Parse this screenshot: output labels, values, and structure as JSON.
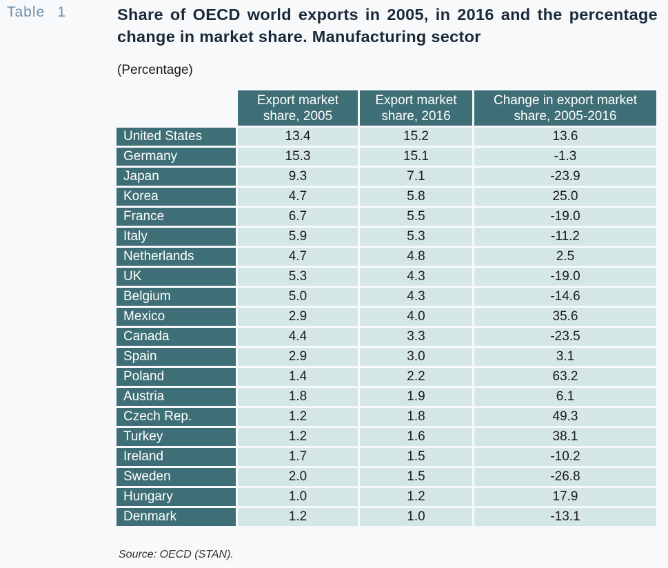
{
  "table_label": "Table",
  "table_number": "1",
  "title": "Share of OECD world exports in 2005, in 2016 and the percentage change in market share. Manufacturing sector",
  "subtitle": "(Percentage)",
  "columns": [
    [
      "Export market",
      "share, 2005"
    ],
    [
      "Export market",
      "share, 2016"
    ],
    [
      "Change in export market",
      "share, 2005-2016"
    ]
  ],
  "rows": [
    {
      "country": "United States",
      "v2005": "13.4",
      "v2016": "15.2",
      "change": "13.6"
    },
    {
      "country": "Germany",
      "v2005": "15.3",
      "v2016": "15.1",
      "change": "-1.3"
    },
    {
      "country": "Japan",
      "v2005": "9.3",
      "v2016": "7.1",
      "change": "-23.9"
    },
    {
      "country": "Korea",
      "v2005": "4.7",
      "v2016": "5.8",
      "change": "25.0"
    },
    {
      "country": "France",
      "v2005": "6.7",
      "v2016": "5.5",
      "change": "-19.0"
    },
    {
      "country": "Italy",
      "v2005": "5.9",
      "v2016": "5.3",
      "change": "-11.2"
    },
    {
      "country": "Netherlands",
      "v2005": "4.7",
      "v2016": "4.8",
      "change": "2.5"
    },
    {
      "country": "UK",
      "v2005": "5.3",
      "v2016": "4.3",
      "change": "-19.0"
    },
    {
      "country": "Belgium",
      "v2005": "5.0",
      "v2016": "4.3",
      "change": "-14.6"
    },
    {
      "country": "Mexico",
      "v2005": "2.9",
      "v2016": "4.0",
      "change": "35.6"
    },
    {
      "country": "Canada",
      "v2005": "4.4",
      "v2016": "3.3",
      "change": "-23.5"
    },
    {
      "country": "Spain",
      "v2005": "2.9",
      "v2016": "3.0",
      "change": "3.1"
    },
    {
      "country": "Poland",
      "v2005": "1.4",
      "v2016": "2.2",
      "change": "63.2"
    },
    {
      "country": "Austria",
      "v2005": "1.8",
      "v2016": "1.9",
      "change": "6.1"
    },
    {
      "country": "Czech Rep.",
      "v2005": "1.2",
      "v2016": "1.8",
      "change": "49.3"
    },
    {
      "country": "Turkey",
      "v2005": "1.2",
      "v2016": "1.6",
      "change": "38.1"
    },
    {
      "country": "Ireland",
      "v2005": "1.7",
      "v2016": "1.5",
      "change": "-10.2"
    },
    {
      "country": "Sweden",
      "v2005": "2.0",
      "v2016": "1.5",
      "change": "-26.8"
    },
    {
      "country": "Hungary",
      "v2005": "1.0",
      "v2016": "1.2",
      "change": "17.9"
    },
    {
      "country": "Denmark",
      "v2005": "1.2",
      "v2016": "1.0",
      "change": "-13.1"
    }
  ],
  "source": "Source: OECD (STAN).",
  "colors": {
    "header": "#3e6e76",
    "cell": "#d5e6e7",
    "label": "#6a8fa8"
  }
}
